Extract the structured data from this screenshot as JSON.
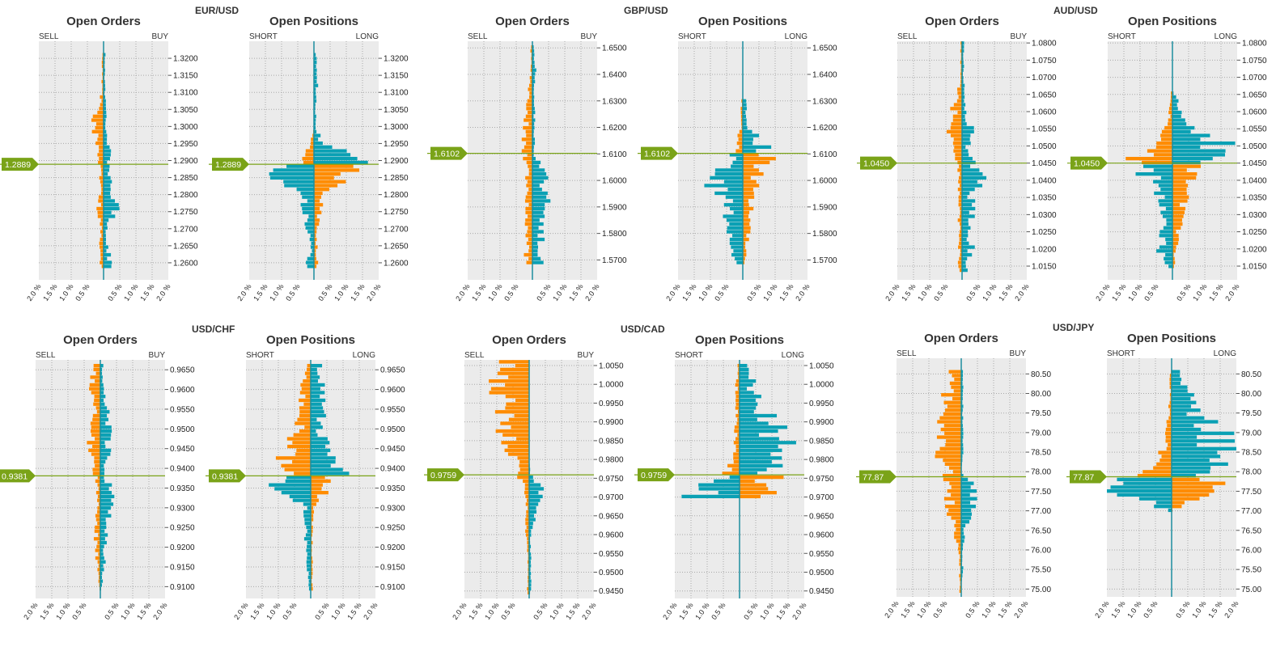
{
  "colors": {
    "long": "#0aa0b4",
    "short": "#ff8c00",
    "current": "#7aa318",
    "plot_bg": "#ebebeb",
    "grid": "#a9a9a9"
  },
  "pct_ticks": [
    "2.0 %",
    "1.5 %",
    "1.0 %",
    "0.5 %",
    "0.5 %",
    "1.0 %",
    "1.5 %",
    "2.0 %"
  ],
  "pairs": [
    {
      "name": "EUR/USD",
      "current": "1.2889",
      "current_value": 1.2889,
      "ymin": 1.255,
      "ymax": 1.325,
      "ticks": [
        "1.3200",
        "1.3150",
        "1.3100",
        "1.3050",
        "1.3000",
        "1.2950",
        "1.2900",
        "1.2850",
        "1.2800",
        "1.2750",
        "1.2700",
        "1.2650",
        "1.2600"
      ],
      "orders": {
        "title": "Open Orders",
        "left_label": "SELL",
        "right_label": "BUY"
      },
      "positions": {
        "title": "Open Positions",
        "left_label": "SHORT",
        "right_label": "LONG"
      }
    },
    {
      "name": "GBP/USD",
      "current": "1.6102",
      "current_value": 1.6102,
      "ymin": 1.5625,
      "ymax": 1.6525,
      "ticks": [
        "1.6500",
        "1.6400",
        "1.6300",
        "1.6200",
        "1.6100",
        "1.6000",
        "1.5900",
        "1.5800",
        "1.5700"
      ],
      "orders": {
        "title": "Open Orders",
        "left_label": "SELL",
        "right_label": "BUY"
      },
      "positions": {
        "title": "Open Positions",
        "left_label": "SHORT",
        "right_label": "LONG"
      }
    },
    {
      "name": "AUD/USD",
      "current": "1.0450",
      "current_value": 1.045,
      "ymin": 1.011,
      "ymax": 1.0805,
      "ticks": [
        "1.0800",
        "1.0750",
        "1.0700",
        "1.0650",
        "1.0600",
        "1.0550",
        "1.0500",
        "1.0450",
        "1.0400",
        "1.0350",
        "1.0300",
        "1.0250",
        "1.0200",
        "1.0150"
      ],
      "orders": {
        "title": "Open Orders",
        "left_label": "SELL",
        "right_label": "BUY"
      },
      "positions": {
        "title": "Open Positions",
        "left_label": "SHORT",
        "right_label": "LONG"
      }
    },
    {
      "name": "USD/CHF",
      "current": "0.9381",
      "current_value": 0.9381,
      "ymin": 0.907,
      "ymax": 0.9675,
      "ticks": [
        "0.9650",
        "0.9600",
        "0.9550",
        "0.9500",
        "0.9450",
        "0.9400",
        "0.9350",
        "0.9300",
        "0.9250",
        "0.9200",
        "0.9150",
        "0.9100"
      ],
      "orders": {
        "title": "Open Orders",
        "left_label": "SELL",
        "right_label": "BUY"
      },
      "positions": {
        "title": "Open Positions",
        "left_label": "SHORT",
        "right_label": "LONG"
      }
    },
    {
      "name": "USD/CAD",
      "current": "0.9759",
      "current_value": 0.9759,
      "ymin": 0.943,
      "ymax": 1.0065,
      "ticks": [
        "1.0050",
        "1.0000",
        "0.9950",
        "0.9900",
        "0.9850",
        "0.9800",
        "0.9750",
        "0.9700",
        "0.9650",
        "0.9600",
        "0.9550",
        "0.9500",
        "0.9450"
      ],
      "orders": {
        "title": "Open Orders",
        "left_label": "SELL",
        "right_label": "BUY"
      },
      "positions": {
        "title": "Open Positions",
        "left_label": "SHORT",
        "right_label": "LONG"
      }
    },
    {
      "name": "USD/JPY",
      "current": "77.87",
      "current_value": 77.87,
      "ymin": 74.8,
      "ymax": 80.9,
      "ticks": [
        "80.50",
        "80.00",
        "79.50",
        "79.00",
        "78.50",
        "78.00",
        "77.50",
        "77.00",
        "76.50",
        "76.00",
        "75.50",
        "75.00"
      ],
      "orders": {
        "title": "Open Orders",
        "left_label": "SELL",
        "right_label": "BUY"
      },
      "positions": {
        "title": "Open Positions",
        "left_label": "SHORT",
        "right_label": "LONG"
      }
    }
  ],
  "chart_data": [
    {
      "type": "bar",
      "pair": "EUR/USD",
      "panel": "Open Orders",
      "x_unit": "% (left SELL, right BUY)",
      "y": [
        1.32,
        1.31,
        1.3,
        1.295,
        1.29,
        1.285,
        1.28,
        1.275,
        1.27,
        1.265,
        1.26
      ],
      "series": [
        {
          "name": "SELL",
          "values": [
            0.05,
            0.05,
            0.4,
            0.2,
            0.15,
            0.1,
            0.1,
            0.2,
            0.1,
            0.1,
            0.1
          ]
        },
        {
          "name": "BUY",
          "values": [
            0.05,
            0.05,
            0.1,
            0.2,
            0.2,
            0.25,
            0.2,
            0.45,
            0.1,
            0.15,
            0.2
          ]
        }
      ]
    },
    {
      "type": "bar",
      "pair": "EUR/USD",
      "panel": "Open Positions",
      "x_unit": "% (left SHORT, right LONG)",
      "y": [
        1.32,
        1.31,
        1.3,
        1.295,
        1.29,
        1.285,
        1.28,
        1.275,
        1.27,
        1.265,
        1.26
      ],
      "series": [
        {
          "name": "SHORT",
          "values": [
            0,
            0,
            0,
            0.1,
            0.6,
            1.5,
            0.4,
            0.3,
            0.2,
            0.1,
            0.2
          ]
        },
        {
          "name": "LONG",
          "values": [
            0.1,
            0.1,
            0.05,
            0.3,
            1.7,
            1.1,
            0.3,
            0.2,
            0.1,
            0.1,
            0.15
          ]
        }
      ]
    },
    {
      "type": "bar",
      "pair": "GBP/USD",
      "panel": "Open Orders",
      "x_unit": "% (left SELL, right BUY)",
      "y": [
        1.65,
        1.64,
        1.63,
        1.62,
        1.61,
        1.6,
        1.59,
        1.58,
        1.57
      ],
      "series": [
        {
          "name": "SELL",
          "values": [
            0.05,
            0.05,
            0.15,
            0.25,
            0.25,
            0.2,
            0.2,
            0.2,
            0.2
          ]
        },
        {
          "name": "BUY",
          "values": [
            0.05,
            0.1,
            0.05,
            0.1,
            0.05,
            0.5,
            0.4,
            0.3,
            0.35
          ]
        }
      ]
    },
    {
      "type": "bar",
      "pair": "GBP/USD",
      "panel": "Open Positions",
      "x_unit": "% (left SHORT, right LONG)",
      "y": [
        1.63,
        1.62,
        1.61,
        1.6,
        1.59,
        1.58,
        1.57
      ],
      "series": [
        {
          "name": "SHORT",
          "values": [
            0.05,
            0.05,
            0.3,
            1.0,
            0.5,
            0.4,
            0.3
          ]
        },
        {
          "name": "LONG",
          "values": [
            0.1,
            0.15,
            0.9,
            0.4,
            0.3,
            0.2,
            0.1
          ]
        }
      ]
    },
    {
      "type": "bar",
      "pair": "AUD/USD",
      "panel": "Open Orders",
      "x_unit": "% (left SELL, right BUY)",
      "y": [
        1.08,
        1.07,
        1.06,
        1.055,
        1.05,
        1.04,
        1.035,
        1.03,
        1.02,
        1.015
      ],
      "series": [
        {
          "name": "SELL",
          "values": [
            0.05,
            0.05,
            0.3,
            0.4,
            0.3,
            0.1,
            0.1,
            0.1,
            0.1,
            0.1
          ]
        },
        {
          "name": "BUY",
          "values": [
            0.05,
            0.05,
            0.1,
            0.3,
            0.2,
            0.6,
            0.3,
            0.35,
            0.3,
            0.2
          ]
        }
      ]
    },
    {
      "type": "bar",
      "pair": "AUD/USD",
      "panel": "Open Positions",
      "x_unit": "% (left SHORT, right LONG)",
      "y": [
        1.065,
        1.06,
        1.055,
        1.05,
        1.045,
        1.04,
        1.035,
        1.03,
        1.025,
        1.02,
        1.015
      ],
      "series": [
        {
          "name": "SHORT",
          "values": [
            0.05,
            0.1,
            0.2,
            0.6,
            1.5,
            0.6,
            0.4,
            0.3,
            0.3,
            0.4,
            0.2
          ]
        },
        {
          "name": "LONG",
          "values": [
            0.05,
            0.3,
            0.6,
            1.6,
            1.2,
            0.5,
            0.4,
            0.3,
            0.2,
            0.1,
            0.05
          ]
        }
      ]
    },
    {
      "type": "bar",
      "pair": "USD/CHF",
      "panel": "Open Orders",
      "x_unit": "% (left SELL, right BUY)",
      "y": [
        0.965,
        0.96,
        0.955,
        0.95,
        0.945,
        0.94,
        0.935,
        0.93,
        0.925,
        0.92,
        0.915,
        0.91
      ],
      "series": [
        {
          "name": "SELL",
          "values": [
            0.2,
            0.3,
            0.2,
            0.3,
            0.4,
            0.2,
            0.1,
            0.1,
            0.15,
            0.15,
            0.1,
            0.05
          ]
        },
        {
          "name": "BUY",
          "values": [
            0.1,
            0.1,
            0.2,
            0.3,
            0.3,
            0.1,
            0.3,
            0.35,
            0.2,
            0.2,
            0.1,
            0.05
          ]
        }
      ]
    },
    {
      "type": "bar",
      "pair": "USD/CHF",
      "panel": "Open Positions",
      "x_unit": "% (left SHORT, right LONG)",
      "y": [
        0.965,
        0.96,
        0.955,
        0.95,
        0.945,
        0.94,
        0.935,
        0.93,
        0.925,
        0.92,
        0.915,
        0.91
      ],
      "series": [
        {
          "name": "SHORT",
          "values": [
            0.1,
            0.3,
            0.3,
            0.4,
            0.8,
            0.8,
            1.1,
            0.2,
            0.2,
            0.15,
            0.1,
            0.05
          ]
        },
        {
          "name": "LONG",
          "values": [
            0.3,
            0.5,
            0.4,
            0.3,
            0.5,
            1.0,
            0.6,
            0.1,
            0.05,
            0.05,
            0.05,
            0.05
          ]
        }
      ]
    },
    {
      "type": "bar",
      "pair": "USD/CAD",
      "panel": "Open Orders",
      "x_unit": "% (left SELL, right BUY)",
      "y": [
        1.005,
        1.0,
        0.995,
        0.99,
        0.985,
        0.98,
        0.9759,
        0.97,
        0.965,
        0.96,
        0.955,
        0.95,
        0.945
      ],
      "series": [
        {
          "name": "SELL",
          "values": [
            0.8,
            1.0,
            0.9,
            1.0,
            0.7,
            0.5,
            0.3,
            0.1,
            0.1,
            0.1,
            0.05,
            0.05,
            0.05
          ]
        },
        {
          "name": "BUY",
          "values": [
            0,
            0,
            0,
            0,
            0,
            0,
            0.05,
            0.6,
            0.2,
            0.05,
            0.05,
            0.05,
            0.05
          ]
        }
      ]
    },
    {
      "type": "bar",
      "pair": "USD/CAD",
      "panel": "Open Positions",
      "x_unit": "% (left SHORT, right LONG)",
      "y": [
        1.005,
        1.0,
        0.995,
        0.99,
        0.985,
        0.98,
        0.975,
        0.97
      ],
      "series": [
        {
          "name": "SHORT",
          "values": [
            0.05,
            0.1,
            0.1,
            0.1,
            0.15,
            0.2,
            0.7,
            1.5
          ]
        },
        {
          "name": "LONG",
          "values": [
            0.3,
            0.4,
            0.6,
            1.1,
            1.4,
            1.2,
            1.0,
            1.0
          ]
        }
      ]
    },
    {
      "type": "bar",
      "pair": "USD/JPY",
      "panel": "Open Orders",
      "x_unit": "% (left SELL, right BUY)",
      "y": [
        80.5,
        80.0,
        79.5,
        79.0,
        78.5,
        78.0,
        77.5,
        77.0,
        76.5,
        76.0,
        75.5,
        75.0
      ],
      "series": [
        {
          "name": "SELL",
          "values": [
            0.3,
            0.5,
            0.6,
            0.6,
            0.8,
            0.5,
            0.5,
            0.4,
            0.2,
            0.1,
            0.05,
            0.05
          ]
        },
        {
          "name": "BUY",
          "values": [
            0.05,
            0.05,
            0.05,
            0.05,
            0.05,
            0,
            0.5,
            0.3,
            0.1,
            0.05,
            0.05,
            0
          ]
        }
      ]
    },
    {
      "type": "bar",
      "pair": "USD/JPY",
      "panel": "Open Positions",
      "x_unit": "% (left SHORT, right LONG)",
      "y": [
        80.5,
        80.0,
        79.5,
        79.0,
        78.5,
        78.0,
        77.5,
        77.0
      ],
      "series": [
        {
          "name": "SHORT",
          "values": [
            0.05,
            0.05,
            0.1,
            0.15,
            0.3,
            1.0,
            1.8,
            0.05
          ]
        },
        {
          "name": "LONG",
          "values": [
            0.2,
            0.5,
            1.0,
            1.5,
            1.7,
            1.5,
            1.2,
            0
          ]
        }
      ]
    }
  ]
}
